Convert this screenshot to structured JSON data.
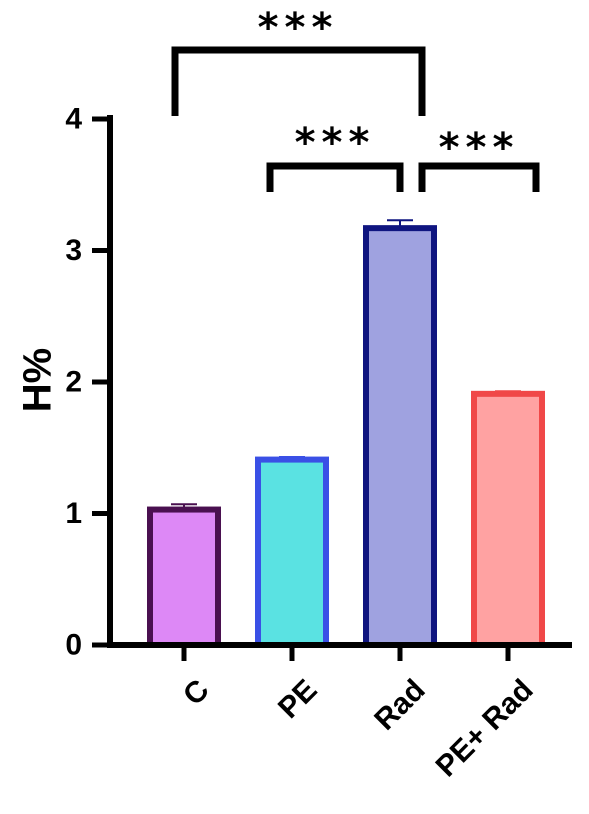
{
  "chart_data": {
    "type": "bar",
    "title": "",
    "xlabel": "",
    "ylabel": "H%",
    "ylim": [
      0,
      4
    ],
    "yticks": [
      0,
      1,
      2,
      3,
      4
    ],
    "grid": false,
    "categories": [
      "C",
      "PE",
      "Rad",
      "PE+ Rad"
    ],
    "values": [
      1.03,
      1.41,
      3.17,
      1.91
    ],
    "errors": [
      0.04,
      0.02,
      0.06,
      0.02
    ],
    "colors": {
      "fill": [
        "#dd88f6",
        "#5ae2e2",
        "#9fa2e0",
        "#ffa2a2"
      ],
      "stroke": [
        "#4a1050",
        "#3a50e6",
        "#0f1580",
        "#f04848"
      ]
    },
    "significance": [
      {
        "from": 1,
        "to": 2,
        "label": "***"
      },
      {
        "from": 2,
        "to": 3,
        "label": "***"
      },
      {
        "from": 0,
        "to": 2,
        "label": "***"
      }
    ]
  }
}
